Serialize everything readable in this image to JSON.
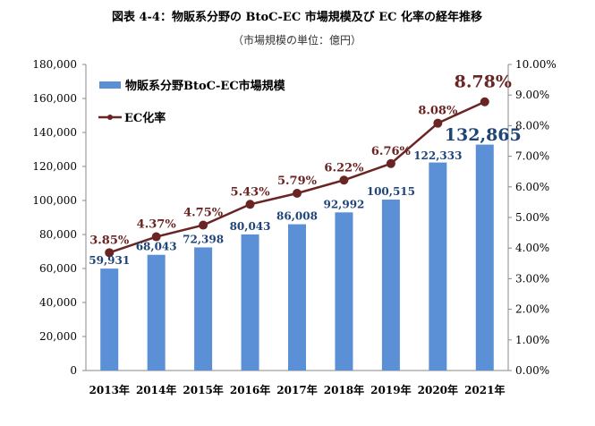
{
  "chart_data": {
    "type": "bar+line",
    "title": "図表 4-4：物販系分野の BtoC-EC 市場規模及び EC 化率の経年推移",
    "subtitle": "（市場規模の単位：億円）",
    "categories": [
      "2013年",
      "2014年",
      "2015年",
      "2016年",
      "2017年",
      "2018年",
      "2019年",
      "2020年",
      "2021年"
    ],
    "series": [
      {
        "name": "物販系分野BtoC-EC市場規模",
        "type": "bar",
        "axis": "left",
        "color": "#5B8FD6",
        "values": [
          59931,
          68043,
          72398,
          80043,
          86008,
          92992,
          100515,
          122333,
          132865
        ],
        "labels": [
          "59,931",
          "68,043",
          "72,398",
          "80,043",
          "86,008",
          "92,992",
          "100,515",
          "122,333",
          "132,865"
        ]
      },
      {
        "name": "EC化率",
        "type": "line",
        "axis": "right",
        "color": "#6B2424",
        "values": [
          3.85,
          4.37,
          4.75,
          5.43,
          5.79,
          6.22,
          6.76,
          8.08,
          8.78
        ],
        "labels": [
          "3.85%",
          "4.37%",
          "4.75%",
          "5.43%",
          "5.79%",
          "6.22%",
          "6.76%",
          "8.08%",
          "8.78%"
        ]
      }
    ],
    "y_left": {
      "range": [
        0,
        180000
      ],
      "ticks": [
        "0",
        "20,000",
        "40,000",
        "60,000",
        "80,000",
        "100,000",
        "120,000",
        "140,000",
        "160,000",
        "180,000"
      ]
    },
    "y_right": {
      "range": [
        0,
        10
      ],
      "ticks": [
        "0.00%",
        "1.00%",
        "2.00%",
        "3.00%",
        "4.00%",
        "5.00%",
        "6.00%",
        "7.00%",
        "8.00%",
        "9.00%",
        "10.00%"
      ]
    },
    "grid": false,
    "legend_position": "top-left",
    "label_colors": {
      "bar": "#1F4478",
      "line": "#6B2424"
    }
  }
}
